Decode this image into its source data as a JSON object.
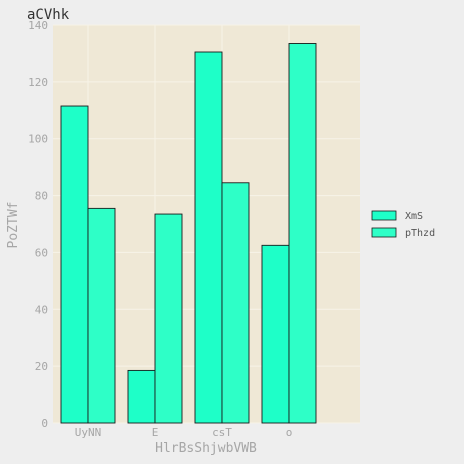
{
  "chart_data": {
    "type": "bar",
    "title": "aCVhk",
    "xlabel": "HlrBsShjwbVWB",
    "ylabel": "PoZTWf",
    "categories": [
      "UyNN",
      "E",
      "csT",
      "o"
    ],
    "series": [
      {
        "name": "XmS",
        "values": [
          111.5,
          18.5,
          130.5,
          62.5
        ],
        "color": "#1effc8"
      },
      {
        "name": "pThzd",
        "values": [
          75.5,
          73.5,
          84.5,
          133.5
        ],
        "color": "#2effc7"
      }
    ],
    "ylim": [
      0,
      140
    ],
    "yticks": [
      0,
      20,
      40,
      60,
      80,
      100,
      120,
      140
    ],
    "grid": true,
    "legend": "right",
    "colors": {
      "background": "#eeeeee",
      "panel": "#efe8d6",
      "grid": "#f7f3e8",
      "bar_outline": "#1a1a1a",
      "text": "#a6a6a6"
    }
  }
}
